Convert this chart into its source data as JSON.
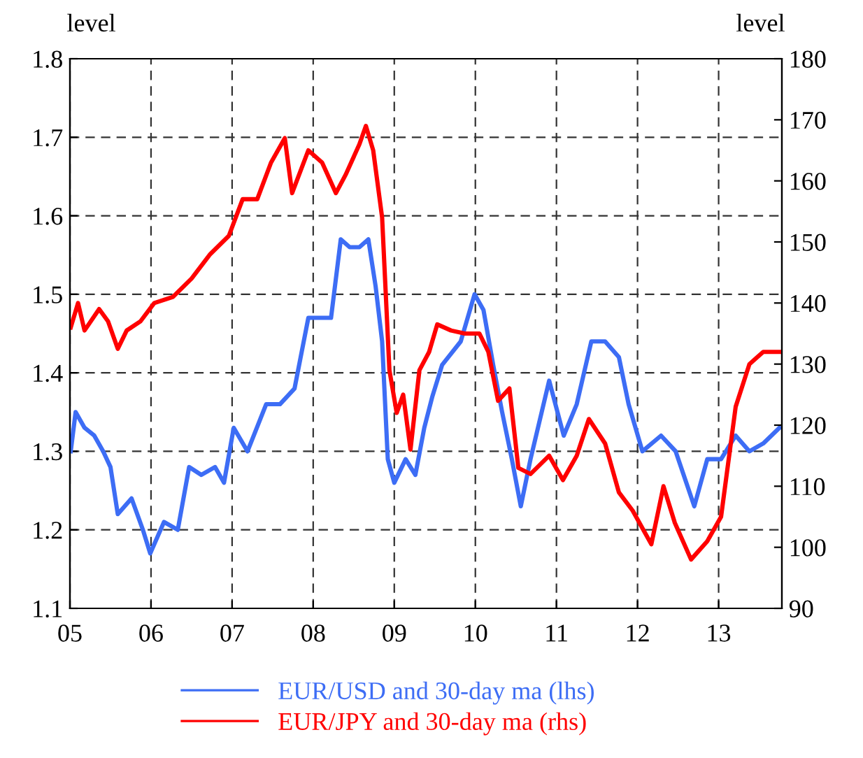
{
  "chart_data": {
    "type": "line",
    "ylabel": "level",
    "y2label": "level",
    "xlim": [
      2005,
      2013.78
    ],
    "xticks": [
      {
        "value": 2005,
        "label": "05"
      },
      {
        "value": 2006,
        "label": "06"
      },
      {
        "value": 2007,
        "label": "07"
      },
      {
        "value": 2008,
        "label": "08"
      },
      {
        "value": 2009,
        "label": "09"
      },
      {
        "value": 2010,
        "label": "10"
      },
      {
        "value": 2011,
        "label": "11"
      },
      {
        "value": 2012,
        "label": "12"
      },
      {
        "value": 2013,
        "label": "13"
      }
    ],
    "ylim": [
      1.1,
      1.8
    ],
    "yticks": [
      1.1,
      1.2,
      1.3,
      1.4,
      1.5,
      1.6,
      1.7,
      1.8
    ],
    "y2lim": [
      90,
      180
    ],
    "y2ticks": [
      90,
      100,
      110,
      120,
      130,
      140,
      150,
      160,
      170,
      180
    ],
    "grid": true,
    "legend": "bottom",
    "series": [
      {
        "name": "EUR/USD and 30-day ma (lhs)",
        "color": "#3d6df5",
        "axis": "y",
        "x": [
          2005.01,
          2005.07,
          2005.18,
          2005.3,
          2005.41,
          2005.5,
          2005.59,
          2005.76,
          2005.9,
          2005.99,
          2006.16,
          2006.33,
          2006.47,
          2006.62,
          2006.79,
          2006.9,
          2007.02,
          2007.19,
          2007.42,
          2007.59,
          2007.77,
          2007.94,
          2008.05,
          2008.22,
          2008.34,
          2008.45,
          2008.57,
          2008.68,
          2008.77,
          2008.85,
          2008.92,
          2009.0,
          2009.14,
          2009.26,
          2009.37,
          2009.47,
          2009.59,
          2009.82,
          2009.99,
          2010.1,
          2010.22,
          2010.33,
          2010.45,
          2010.56,
          2010.68,
          2010.91,
          2011.09,
          2011.25,
          2011.43,
          2011.6,
          2011.77,
          2011.89,
          2012.06,
          2012.29,
          2012.47,
          2012.7,
          2012.86,
          2013.03,
          2013.21,
          2013.38,
          2013.55,
          2013.75
        ],
        "values": [
          1.3,
          1.35,
          1.33,
          1.32,
          1.3,
          1.28,
          1.22,
          1.24,
          1.2,
          1.17,
          1.21,
          1.2,
          1.28,
          1.27,
          1.28,
          1.26,
          1.33,
          1.3,
          1.36,
          1.36,
          1.38,
          1.47,
          1.47,
          1.47,
          1.57,
          1.56,
          1.56,
          1.57,
          1.51,
          1.44,
          1.29,
          1.26,
          1.29,
          1.27,
          1.33,
          1.37,
          1.41,
          1.44,
          1.5,
          1.48,
          1.41,
          1.35,
          1.29,
          1.23,
          1.29,
          1.39,
          1.32,
          1.36,
          1.44,
          1.44,
          1.42,
          1.36,
          1.3,
          1.32,
          1.3,
          1.23,
          1.29,
          1.29,
          1.32,
          1.3,
          1.31,
          1.33
        ]
      },
      {
        "name": "EUR/JPY and 30-day ma (rhs)",
        "color": "#ff0000",
        "axis": "y2",
        "x": [
          2005.01,
          2005.1,
          2005.18,
          2005.36,
          2005.47,
          2005.59,
          2005.7,
          2005.87,
          2006.04,
          2006.27,
          2006.5,
          2006.73,
          2006.96,
          2007.13,
          2007.31,
          2007.48,
          2007.65,
          2007.74,
          2007.94,
          2008.11,
          2008.28,
          2008.4,
          2008.57,
          2008.65,
          2008.74,
          2008.85,
          2008.94,
          2009.03,
          2009.11,
          2009.2,
          2009.31,
          2009.43,
          2009.53,
          2009.7,
          2009.87,
          2010.05,
          2010.16,
          2010.28,
          2010.42,
          2010.53,
          2010.68,
          2010.91,
          2011.08,
          2011.25,
          2011.4,
          2011.6,
          2011.77,
          2011.94,
          2012.17,
          2012.32,
          2012.46,
          2012.66,
          2012.86,
          2013.03,
          2013.21,
          2013.38,
          2013.55,
          2013.75
        ],
        "values": [
          136,
          140,
          135.5,
          139,
          137,
          132.5,
          135.5,
          137,
          140,
          141,
          144,
          148,
          151,
          157,
          157,
          163,
          167,
          158,
          165,
          163,
          158,
          161,
          166,
          169,
          165,
          154,
          129,
          122,
          125,
          116,
          129,
          132,
          136.5,
          135.5,
          135,
          135,
          132,
          124,
          126,
          113,
          112,
          115,
          111,
          115,
          121,
          117,
          109,
          106,
          100.5,
          110,
          104,
          98,
          101,
          105,
          123,
          130,
          132,
          132
        ]
      }
    ]
  }
}
